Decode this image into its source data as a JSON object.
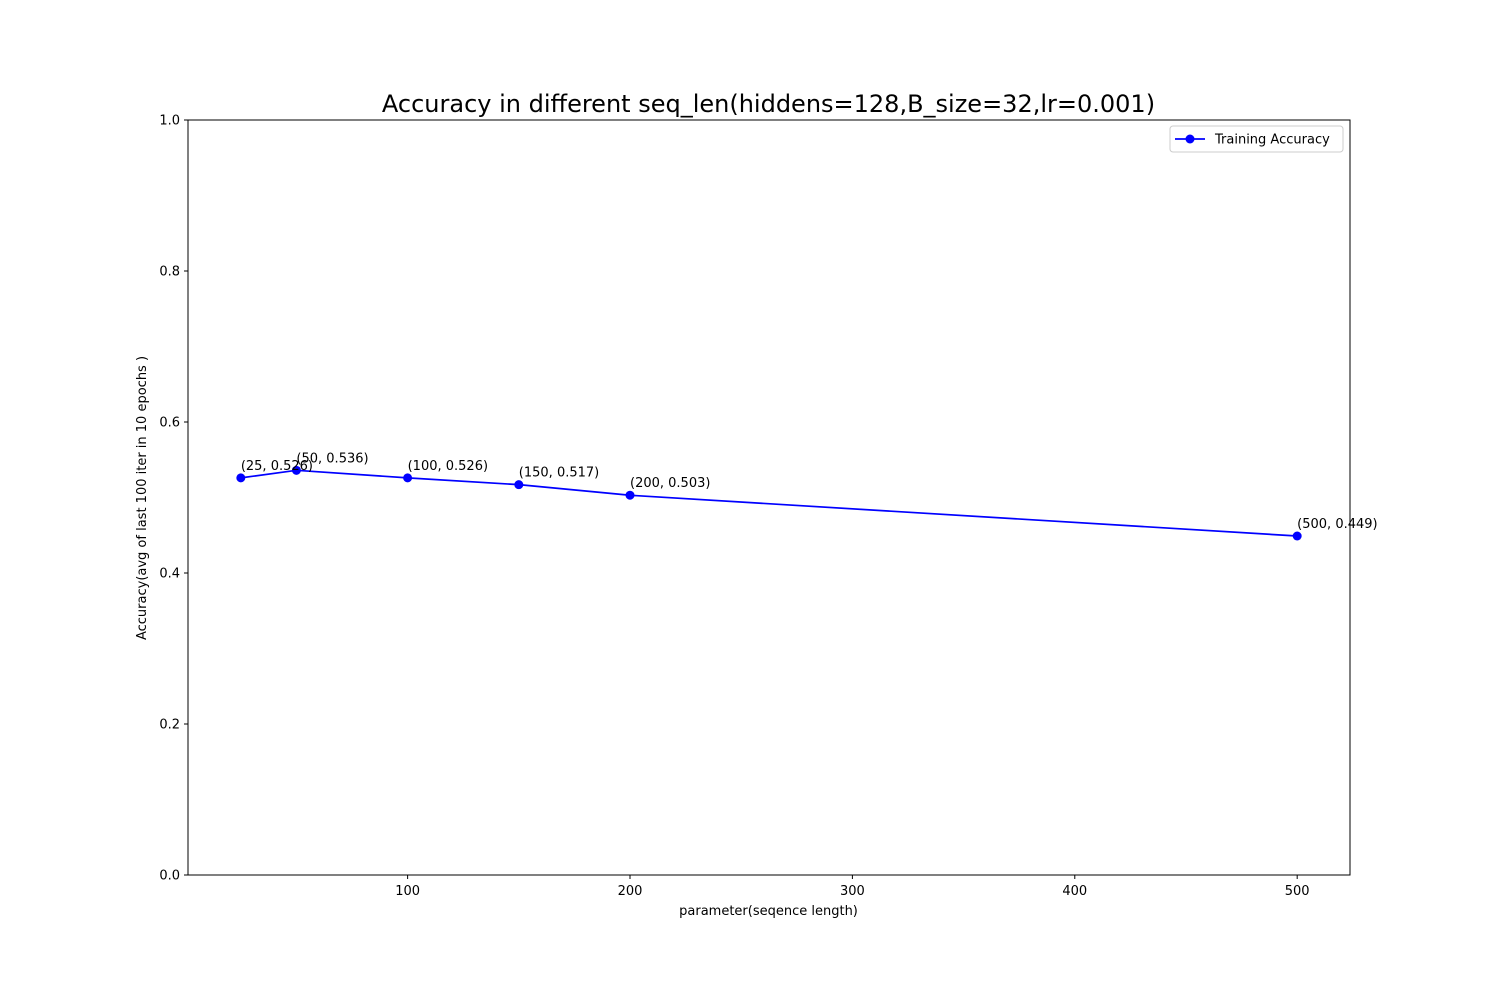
{
  "chart_data": {
    "type": "line",
    "title": "Accuracy in different seq_len(hiddens=128,B_size=32,lr=0.001)",
    "xlabel": "parameter(seqence length)",
    "ylabel": "Accuracy(avg of last 100 iter in 10 epochs )",
    "xlim": [
      1.25,
      523.75
    ],
    "ylim": [
      0.0,
      1.0
    ],
    "xticks": [
      100,
      200,
      300,
      400,
      500
    ],
    "xtick_labels": [
      "100",
      "200",
      "300",
      "400",
      "500"
    ],
    "yticks": [
      0.0,
      0.2,
      0.4,
      0.6,
      0.8,
      1.0
    ],
    "ytick_labels": [
      "0.0",
      "0.2",
      "0.4",
      "0.6",
      "0.8",
      "1.0"
    ],
    "grid": false,
    "legend_position": "top-right",
    "series": [
      {
        "name": "Training Accuracy",
        "color": "#0000ff",
        "marker": "circle",
        "x": [
          25,
          50,
          100,
          150,
          200,
          500
        ],
        "y": [
          0.526,
          0.536,
          0.526,
          0.517,
          0.503,
          0.449
        ]
      }
    ],
    "annotations": [
      "(25, 0.526)",
      "(50, 0.536)",
      "(100, 0.526)",
      "(150, 0.517)",
      "(200, 0.503)",
      "(500, 0.449)"
    ]
  }
}
